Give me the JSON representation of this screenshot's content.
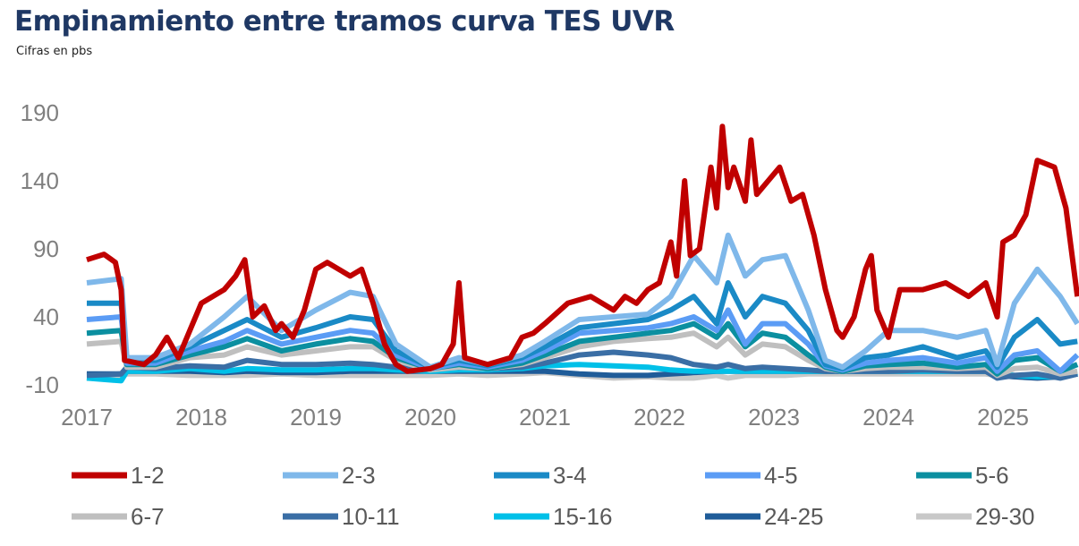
{
  "title": "Empinamiento entre tramos curva TES UVR",
  "subtitle": "Cifras en pbs",
  "chart_data": {
    "type": "line",
    "title": "Empinamiento entre tramos curva TES UVR",
    "subtitle": "Cifras en pbs",
    "ylabel": "pbs",
    "ylim": [
      -10,
      190
    ],
    "yticks": [
      190,
      140,
      90,
      40,
      -10
    ],
    "xlim": [
      2017,
      2025.7
    ],
    "xticks": [
      "2017",
      "2018",
      "2019",
      "2020",
      "2021",
      "2022",
      "2023",
      "2024",
      "2025"
    ],
    "legend_position": "bottom",
    "x": [
      2017,
      2017.3,
      2017.35,
      2017.6,
      2017.9,
      2018.2,
      2018.4,
      2018.7,
      2019.0,
      2019.3,
      2019.5,
      2019.7,
      2020.0,
      2020.25,
      2020.5,
      2020.8,
      2021.0,
      2021.3,
      2021.6,
      2021.9,
      2022.1,
      2022.3,
      2022.5,
      2022.6,
      2022.75,
      2022.9,
      2023.1,
      2023.3,
      2023.45,
      2023.6,
      2023.8,
      2024.0,
      2024.3,
      2024.6,
      2024.85,
      2024.95,
      2025.1,
      2025.3,
      2025.5,
      2025.65
    ],
    "series": [
      {
        "name": "1-2",
        "color": "#c00000",
        "x": [
          2017.0,
          2017.15,
          2017.25,
          2017.3,
          2017.33,
          2017.5,
          2017.6,
          2017.7,
          2017.8,
          2017.9,
          2018.0,
          2018.1,
          2018.2,
          2018.3,
          2018.38,
          2018.45,
          2018.55,
          2018.65,
          2018.7,
          2018.8,
          2018.9,
          2019.0,
          2019.1,
          2019.2,
          2019.3,
          2019.4,
          2019.5,
          2019.6,
          2019.7,
          2019.8,
          2020.0,
          2020.1,
          2020.2,
          2020.25,
          2020.3,
          2020.5,
          2020.7,
          2020.8,
          2020.9,
          2021.0,
          2021.2,
          2021.4,
          2021.5,
          2021.6,
          2021.7,
          2021.8,
          2021.9,
          2022.0,
          2022.1,
          2022.15,
          2022.22,
          2022.27,
          2022.35,
          2022.45,
          2022.5,
          2022.55,
          2022.6,
          2022.65,
          2022.75,
          2022.8,
          2022.85,
          2022.95,
          2023.05,
          2023.15,
          2023.25,
          2023.35,
          2023.45,
          2023.55,
          2023.6,
          2023.7,
          2023.8,
          2023.85,
          2023.9,
          2024.0,
          2024.1,
          2024.3,
          2024.5,
          2024.7,
          2024.85,
          2024.95,
          2025.0,
          2025.1,
          2025.2,
          2025.3,
          2025.45,
          2025.55,
          2025.65
        ],
        "values": [
          82,
          86,
          80,
          60,
          8,
          5,
          12,
          25,
          10,
          30,
          50,
          55,
          60,
          70,
          82,
          40,
          48,
          30,
          35,
          25,
          45,
          75,
          80,
          75,
          70,
          75,
          50,
          20,
          5,
          0,
          2,
          5,
          20,
          65,
          10,
          5,
          10,
          25,
          28,
          35,
          50,
          55,
          50,
          45,
          55,
          50,
          60,
          65,
          95,
          70,
          140,
          85,
          90,
          150,
          120,
          180,
          135,
          150,
          125,
          170,
          130,
          140,
          150,
          125,
          130,
          100,
          60,
          30,
          25,
          40,
          75,
          85,
          45,
          25,
          60,
          60,
          65,
          55,
          65,
          40,
          95,
          100,
          115,
          155,
          150,
          120,
          55
        ]
      },
      {
        "name": "2-3",
        "color": "#7fb8ea",
        "values": [
          65,
          68,
          10,
          10,
          20,
          40,
          55,
          30,
          45,
          58,
          55,
          20,
          3,
          10,
          5,
          12,
          22,
          38,
          40,
          42,
          55,
          85,
          65,
          100,
          70,
          82,
          85,
          45,
          8,
          3,
          15,
          30,
          30,
          25,
          30,
          5,
          50,
          75,
          55,
          35
        ]
      },
      {
        "name": "3-4",
        "color": "#1a8ac6",
        "values": [
          50,
          50,
          8,
          8,
          18,
          30,
          38,
          25,
          32,
          40,
          38,
          15,
          3,
          8,
          4,
          10,
          18,
          32,
          35,
          38,
          45,
          55,
          35,
          65,
          40,
          55,
          50,
          30,
          5,
          2,
          10,
          12,
          18,
          10,
          15,
          3,
          25,
          38,
          20,
          22
        ]
      },
      {
        "name": "4-5",
        "color": "#5b9cf5",
        "values": [
          38,
          40,
          6,
          6,
          15,
          22,
          30,
          20,
          25,
          30,
          28,
          12,
          2,
          6,
          3,
          8,
          15,
          28,
          30,
          32,
          35,
          40,
          30,
          45,
          20,
          35,
          35,
          20,
          4,
          1,
          6,
          8,
          10,
          6,
          10,
          0,
          12,
          15,
          0,
          12
        ]
      },
      {
        "name": "5-6",
        "color": "#0b8fa0",
        "values": [
          28,
          30,
          5,
          5,
          12,
          18,
          24,
          15,
          20,
          24,
          22,
          10,
          2,
          5,
          2,
          6,
          12,
          22,
          25,
          28,
          30,
          35,
          25,
          35,
          18,
          28,
          25,
          12,
          3,
          0,
          4,
          5,
          6,
          3,
          5,
          -2,
          8,
          10,
          0,
          5
        ]
      },
      {
        "name": "6-7",
        "color": "#bfbfbf",
        "values": [
          20,
          22,
          3,
          3,
          10,
          12,
          18,
          12,
          15,
          18,
          18,
          8,
          1,
          3,
          2,
          5,
          10,
          18,
          22,
          24,
          25,
          28,
          18,
          25,
          12,
          20,
          18,
          8,
          2,
          0,
          2,
          3,
          3,
          2,
          3,
          -3,
          2,
          3,
          -2,
          0
        ]
      },
      {
        "name": "10-11",
        "color": "#3a6ea5",
        "values": [
          -3,
          -2,
          3,
          2,
          4,
          3,
          8,
          5,
          5,
          6,
          5,
          3,
          2,
          3,
          2,
          3,
          6,
          12,
          14,
          12,
          10,
          5,
          3,
          5,
          2,
          3,
          2,
          1,
          0,
          0,
          0,
          0,
          1,
          0,
          0,
          -5,
          -3,
          -2,
          -5,
          -2
        ]
      },
      {
        "name": "15-16",
        "color": "#00c0e8",
        "values": [
          -5,
          -7,
          0,
          0,
          2,
          0,
          2,
          1,
          1,
          2,
          2,
          1,
          0,
          1,
          1,
          2,
          4,
          5,
          4,
          3,
          1,
          0,
          0,
          0,
          0,
          0,
          0,
          0,
          0,
          0,
          0,
          0,
          0,
          0,
          0,
          -2,
          -3,
          -4,
          -4,
          -1
        ]
      },
      {
        "name": "24-25",
        "color": "#1f5c99",
        "values": [
          -2,
          -2,
          0,
          0,
          0,
          -1,
          0,
          -1,
          -1,
          0,
          0,
          0,
          0,
          0,
          0,
          0,
          0,
          -2,
          -3,
          -3,
          -2,
          -1,
          0,
          0,
          0,
          0,
          0,
          0,
          0,
          0,
          0,
          0,
          0,
          0,
          0,
          -3,
          -4,
          -5,
          -4,
          -2
        ]
      },
      {
        "name": "29-30",
        "color": "#c8c8c8",
        "values": [
          -5,
          -4,
          -2,
          -2,
          -3,
          -3,
          -3,
          -2,
          -3,
          -3,
          -3,
          -3,
          -3,
          -2,
          -3,
          -2,
          -1,
          -3,
          -5,
          -4,
          -5,
          -5,
          -3,
          -5,
          -3,
          -3,
          -3,
          -2,
          -2,
          -2,
          -2,
          -2,
          -2,
          -2,
          -2,
          -3,
          -4,
          -5,
          -4,
          -2
        ]
      }
    ]
  }
}
